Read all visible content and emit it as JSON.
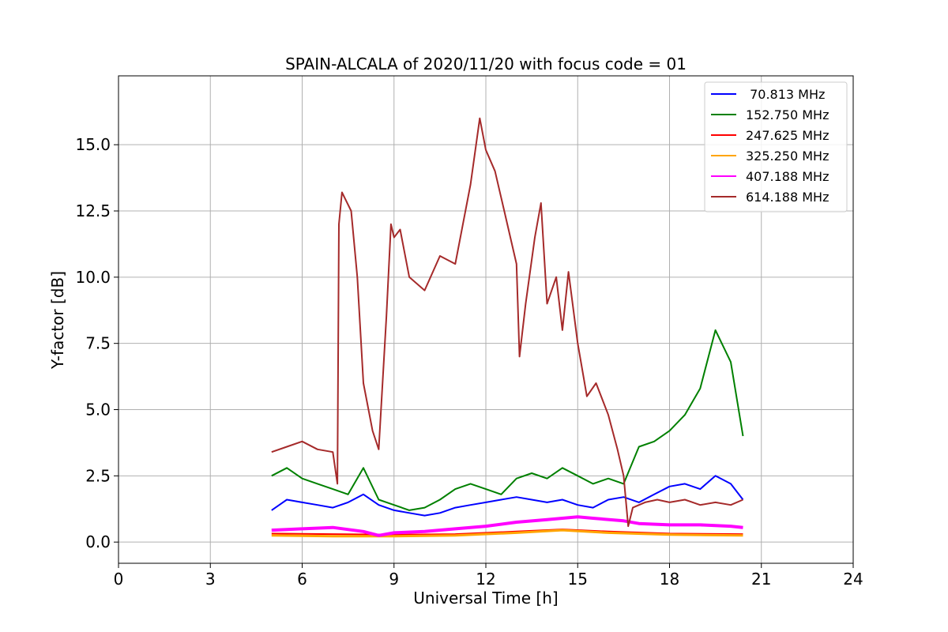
{
  "chart_data": {
    "type": "line",
    "title": "SPAIN-ALCALA of 2020/11/20 with focus code = 01",
    "xlabel": "Universal Time [h]",
    "ylabel": "Y-factor [dB]",
    "xlim": [
      0,
      24
    ],
    "ylim": [
      -0.8,
      17.6
    ],
    "xticks": [
      0,
      3,
      6,
      9,
      12,
      15,
      18,
      21,
      24
    ],
    "xtick_labels": [
      "0",
      "3",
      "6",
      "9",
      "12",
      "15",
      "18",
      "21",
      "24"
    ],
    "yticks": [
      0,
      2.5,
      5,
      7.5,
      10,
      12.5,
      15
    ],
    "ytick_labels": [
      "0.0",
      "2.5",
      "5.0",
      "7.5",
      "10.0",
      "12.5",
      "15.0"
    ],
    "grid": true,
    "legend_position": "upper right",
    "series": [
      {
        "name": " 70.813 MHz",
        "color": "#0000ff",
        "x": [
          5.0,
          5.5,
          6.0,
          6.5,
          7.0,
          7.5,
          8.0,
          8.5,
          9.0,
          9.5,
          10.0,
          10.5,
          11.0,
          11.5,
          12.0,
          12.5,
          13.0,
          13.5,
          14.0,
          14.5,
          15.0,
          15.5,
          16.0,
          16.5,
          17.0,
          17.5,
          18.0,
          18.5,
          19.0,
          19.5,
          20.0,
          20.4
        ],
        "y": [
          1.2,
          1.6,
          1.5,
          1.4,
          1.3,
          1.5,
          1.8,
          1.4,
          1.2,
          1.1,
          1.0,
          1.1,
          1.3,
          1.4,
          1.5,
          1.6,
          1.7,
          1.6,
          1.5,
          1.6,
          1.4,
          1.3,
          1.6,
          1.7,
          1.5,
          1.8,
          2.1,
          2.2,
          2.0,
          2.5,
          2.2,
          1.6
        ]
      },
      {
        "name": "152.750 MHz",
        "color": "#008000",
        "x": [
          5.0,
          5.5,
          6.0,
          6.5,
          7.0,
          7.5,
          8.0,
          8.5,
          9.0,
          9.5,
          10.0,
          10.5,
          11.0,
          11.5,
          12.0,
          12.5,
          13.0,
          13.5,
          14.0,
          14.5,
          15.0,
          15.5,
          16.0,
          16.5,
          17.0,
          17.5,
          18.0,
          18.5,
          19.0,
          19.5,
          20.0,
          20.4
        ],
        "y": [
          2.5,
          2.8,
          2.4,
          2.2,
          2.0,
          1.8,
          2.8,
          1.6,
          1.4,
          1.2,
          1.3,
          1.6,
          2.0,
          2.2,
          2.0,
          1.8,
          2.4,
          2.6,
          2.4,
          2.8,
          2.5,
          2.2,
          2.4,
          2.2,
          3.6,
          3.8,
          4.2,
          4.8,
          5.8,
          8.0,
          6.8,
          4.0
        ]
      },
      {
        "name": "247.625 MHz",
        "color": "#ff0000",
        "x": [
          5.0,
          7.0,
          9.0,
          11.0,
          13.0,
          14.5,
          16.0,
          18.0,
          20.4
        ],
        "y": [
          0.32,
          0.3,
          0.28,
          0.3,
          0.4,
          0.48,
          0.4,
          0.32,
          0.3
        ]
      },
      {
        "name": "325.250 MHz",
        "color": "#ffa500",
        "x": [
          5.0,
          7.0,
          9.0,
          11.0,
          13.0,
          14.5,
          16.0,
          18.0,
          20.4
        ],
        "y": [
          0.25,
          0.22,
          0.22,
          0.25,
          0.35,
          0.45,
          0.35,
          0.28,
          0.25
        ]
      },
      {
        "name": "407.188 MHz",
        "color": "#ff00ff",
        "x": [
          5.0,
          6.0,
          7.0,
          8.0,
          8.5,
          9.0,
          10.0,
          11.0,
          12.0,
          13.0,
          14.0,
          15.0,
          15.5,
          16.5,
          17.0,
          18.0,
          19.0,
          20.0,
          20.4
        ],
        "y": [
          0.45,
          0.5,
          0.55,
          0.4,
          0.25,
          0.35,
          0.4,
          0.5,
          0.6,
          0.75,
          0.85,
          0.95,
          0.9,
          0.8,
          0.7,
          0.65,
          0.65,
          0.6,
          0.55
        ]
      },
      {
        "name": "614.188 MHz",
        "color": "#a52a2a",
        "x": [
          5.0,
          5.5,
          6.0,
          6.5,
          7.0,
          7.15,
          7.2,
          7.3,
          7.6,
          7.8,
          8.0,
          8.3,
          8.5,
          8.75,
          8.9,
          9.0,
          9.2,
          9.5,
          10.0,
          10.5,
          11.0,
          11.5,
          11.8,
          12.0,
          12.3,
          12.6,
          13.0,
          13.1,
          13.3,
          13.6,
          13.8,
          14.0,
          14.3,
          14.5,
          14.7,
          15.0,
          15.3,
          15.6,
          16.0,
          16.3,
          16.5,
          16.65,
          16.8,
          17.2,
          17.6,
          18.0,
          18.5,
          19.0,
          19.5,
          20.0,
          20.4
        ],
        "y": [
          3.4,
          3.6,
          3.8,
          3.5,
          3.4,
          2.2,
          12.0,
          13.2,
          12.5,
          10.0,
          6.0,
          4.2,
          3.5,
          8.5,
          12.0,
          11.5,
          11.8,
          10.0,
          9.5,
          10.8,
          10.5,
          13.5,
          16.0,
          14.8,
          14.0,
          12.5,
          10.5,
          7.0,
          9.0,
          11.5,
          12.8,
          9.0,
          10.0,
          8.0,
          10.2,
          7.5,
          5.5,
          6.0,
          4.8,
          3.5,
          2.5,
          0.6,
          1.3,
          1.5,
          1.6,
          1.5,
          1.6,
          1.4,
          1.5,
          1.4,
          1.6
        ]
      }
    ]
  }
}
